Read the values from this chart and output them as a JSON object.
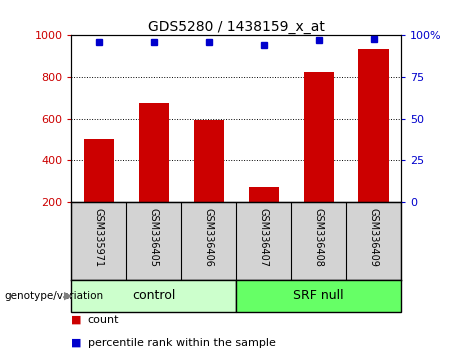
{
  "title": "GDS5280 / 1438159_x_at",
  "samples": [
    "GSM335971",
    "GSM336405",
    "GSM336406",
    "GSM336407",
    "GSM336408",
    "GSM336409"
  ],
  "counts": [
    500,
    675,
    595,
    270,
    825,
    935
  ],
  "percentile_ranks": [
    96,
    96,
    96,
    94.5,
    97,
    98
  ],
  "ylim_left": [
    200,
    1000
  ],
  "ylim_right": [
    0,
    100
  ],
  "yticks_left": [
    200,
    400,
    600,
    800,
    1000
  ],
  "yticks_right": [
    0,
    25,
    50,
    75,
    100
  ],
  "bar_color": "#cc0000",
  "dot_color": "#0000cc",
  "control_samples_count": 3,
  "srf_null_samples_count": 3,
  "control_label": "control",
  "srf_null_label": "SRF null",
  "genotype_label": "genotype/variation",
  "legend_count_label": "count",
  "legend_percentile_label": "percentile rank within the sample",
  "control_color": "#ccffcc",
  "srf_color": "#66ff66",
  "label_area_color": "#d3d3d3",
  "bg_color": "#ffffff"
}
